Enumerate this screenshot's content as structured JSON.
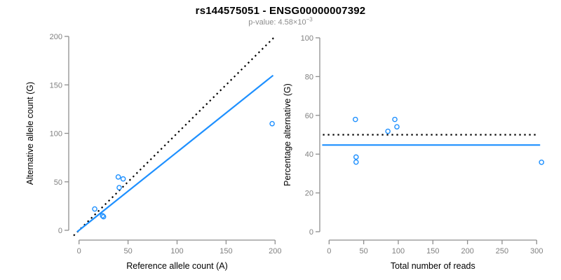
{
  "figure": {
    "title": "rs144575051 - ENSG00000007392",
    "subtitle_prefix": "p-value: 4.58×10",
    "subtitle_exponent": "−3"
  },
  "colors": {
    "accent_blue": "#1E90FF",
    "reference_black": "#000000",
    "axis_gray": "#8e8e8e",
    "tick_label_gray": "#808080",
    "axis_title_color": "#000000",
    "subtitle_gray": "#8c8c8c"
  },
  "chart_data": [
    {
      "type": "scatter",
      "name": "counts-plot",
      "xlabel": "Reference allele count (A)",
      "ylabel": "Alternative allele count (G)",
      "xlim": [
        0,
        200
      ],
      "ylim": [
        0,
        200
      ],
      "xticks": [
        0,
        50,
        100,
        150,
        200
      ],
      "yticks": [
        0,
        50,
        100,
        150,
        200
      ],
      "grid": false,
      "points": [
        [
          16,
          22
        ],
        [
          24,
          15
        ],
        [
          25,
          14
        ],
        [
          40,
          55
        ],
        [
          41,
          44
        ],
        [
          45,
          53
        ],
        [
          197,
          110
        ]
      ],
      "lines": [
        {
          "name": "identity-line",
          "style": "dotted",
          "color": "#000000",
          "slope": 1,
          "intercept": 0,
          "x_range": [
            -5.5,
            198.5
          ]
        },
        {
          "name": "fit-line",
          "style": "solid",
          "color": "#1E90FF",
          "slope": 0.807,
          "intercept": 0,
          "x_range": [
            -2,
            198
          ]
        }
      ]
    },
    {
      "type": "scatter",
      "name": "percentage-plot",
      "xlabel": "Total number of reads",
      "ylabel": "Percentage alternative (G)",
      "xlim": [
        0,
        300
      ],
      "ylim": [
        0,
        100
      ],
      "xticks": [
        0,
        50,
        100,
        150,
        200,
        250,
        300
      ],
      "yticks": [
        0,
        20,
        40,
        60,
        80,
        100
      ],
      "grid": false,
      "points": [
        [
          38,
          57.9
        ],
        [
          39,
          38.5
        ],
        [
          39,
          35.9
        ],
        [
          85,
          51.8
        ],
        [
          95,
          57.9
        ],
        [
          98,
          54.1
        ],
        [
          307,
          35.8
        ]
      ],
      "lines": [
        {
          "name": "expected-50-line",
          "style": "dotted",
          "color": "#000000",
          "slope": 0,
          "intercept": 50,
          "x_range": [
            -9,
            303
          ]
        },
        {
          "name": "mean-percentage-line",
          "style": "solid",
          "color": "#1E90FF",
          "slope": 0,
          "intercept": 44.7,
          "x_range": [
            -10,
            305
          ]
        }
      ]
    }
  ]
}
